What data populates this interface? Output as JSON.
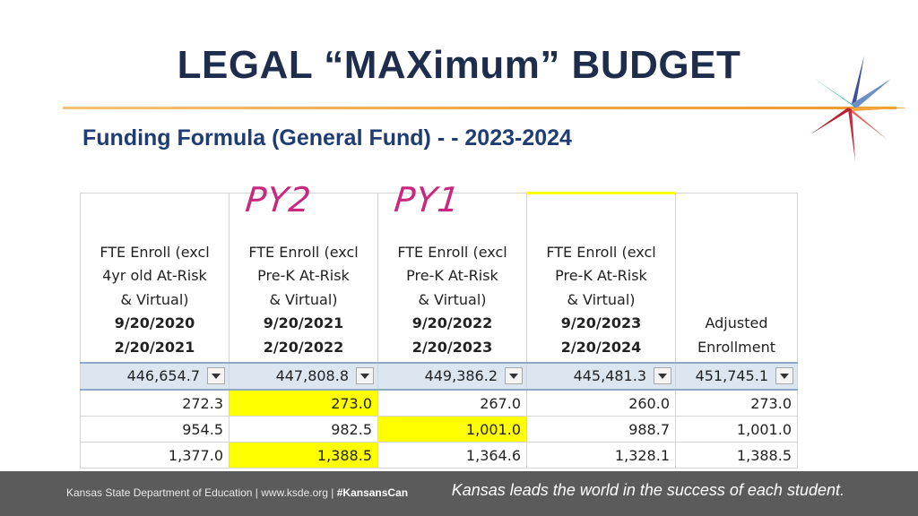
{
  "title": "LEGAL “MAXimum” BUDGET",
  "subtitle_bold": "Funding Formula",
  "subtitle_mid": "(General Fund)",
  "subtitle_tail": "- - 2023-2024",
  "annotations": {
    "py2": "PY2",
    "py1": "PY1"
  },
  "headers": [
    {
      "l1": "FTE Enroll (excl",
      "l2": "4yr old At-Risk",
      "l3": "& Virtual)",
      "d1": "9/20/2020",
      "d2": "2/20/2021"
    },
    {
      "l1": "FTE Enroll (excl",
      "l2": "Pre-K At-Risk",
      "l3": "& Virtual)",
      "d1": "9/20/2021",
      "d2": "2/20/2022"
    },
    {
      "l1": "FTE Enroll (excl",
      "l2": "Pre-K At-Risk",
      "l3": "& Virtual)",
      "d1": "9/20/2022",
      "d2": "2/20/2023"
    },
    {
      "l1": "FTE Enroll (excl",
      "l2": "Pre-K At-Risk",
      "l3": "& Virtual)",
      "d1": "9/20/2023",
      "d2": "2/20/2024"
    },
    {
      "l1": "",
      "l2": "",
      "l3": "",
      "d1": "Adjusted",
      "d2": "Enrollment"
    }
  ],
  "totals": [
    "446,654.7",
    "447,808.8",
    "449,386.2",
    "445,481.3",
    "451,745.1"
  ],
  "rows": [
    [
      "272.3",
      "273.0",
      "267.0",
      "260.0",
      "273.0"
    ],
    [
      "954.5",
      "982.5",
      "1,001.0",
      "988.7",
      "1,001.0"
    ],
    [
      "1,377.0",
      "1,388.5",
      "1,364.6",
      "1,328.1",
      "1,388.5"
    ]
  ],
  "highlight_color": "#ffff00",
  "footer": {
    "left_text": "Kansas State Department of Education | www.ksde.org | ",
    "hashtag": "#KansansCan",
    "tagline": "Kansas leads the world in the success of each student."
  }
}
